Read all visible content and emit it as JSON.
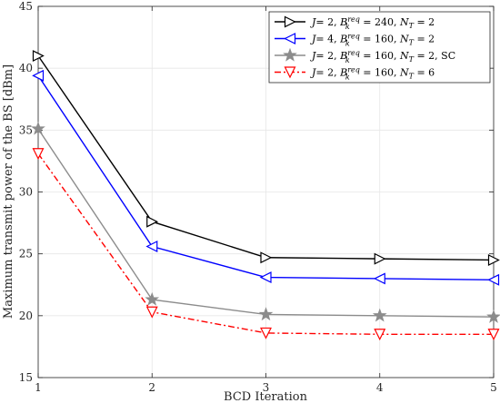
{
  "chart_data": {
    "type": "line",
    "xlabel": "BCD Iteration",
    "ylabel": "Maximum transmit power of the BS [dBm]",
    "x": [
      1,
      2,
      3,
      4,
      5
    ],
    "xlim": [
      1,
      5
    ],
    "ylim": [
      15,
      45
    ],
    "xticks": [
      "1",
      "2",
      "3",
      "4",
      "5"
    ],
    "yticks": [
      "15",
      "20",
      "25",
      "30",
      "35",
      "40",
      "45"
    ],
    "grid": true,
    "legend_position": "top-right",
    "series": [
      {
        "name": "J = 2, B_k^req = 240, N_T = 2",
        "legend": {
          "a": "J",
          "b": "= 2, ",
          "c": "B",
          "sub": "k",
          "sup": "req",
          "d": " = 240, ",
          "e": "N",
          "sub2": "T",
          "f": " = 2"
        },
        "values": [
          41.0,
          27.6,
          24.7,
          24.6,
          24.5
        ],
        "color": "#000000",
        "dash": "solid",
        "marker": "triangle-right"
      },
      {
        "name": "J = 4, B_k^req = 160, N_T = 2",
        "legend": {
          "a": "J",
          "b": "= 4, ",
          "c": "B",
          "sub": "k",
          "sup": "req",
          "d": " = 160, ",
          "e": "N",
          "sub2": "T",
          "f": " = 2"
        },
        "values": [
          39.4,
          25.6,
          23.1,
          23.0,
          22.9
        ],
        "color": "#0000ff",
        "dash": "solid",
        "marker": "triangle-left"
      },
      {
        "name": "J = 2, B_k^req = 160, N_T = 2, SC",
        "legend": {
          "a": "J",
          "b": "= 2, ",
          "c": "B",
          "sub": "k",
          "sup": "req",
          "d": " = 160, ",
          "e": "N",
          "sub2": "T",
          "f": " = 2, SC"
        },
        "values": [
          35.1,
          21.3,
          20.1,
          20.0,
          19.9
        ],
        "color": "#8c8c8c",
        "dash": "solid",
        "marker": "star"
      },
      {
        "name": "J = 2, B_k^req = 160, N_T = 6",
        "legend": {
          "a": "J",
          "b": "= 2, ",
          "c": "B",
          "sub": "k",
          "sup": "req",
          "d": " = 160, ",
          "e": "N",
          "sub2": "T",
          "f": " = 6"
        },
        "values": [
          33.1,
          20.3,
          18.6,
          18.5,
          18.5
        ],
        "color": "#ff0000",
        "dash": "dashdot",
        "marker": "triangle-down"
      }
    ]
  }
}
